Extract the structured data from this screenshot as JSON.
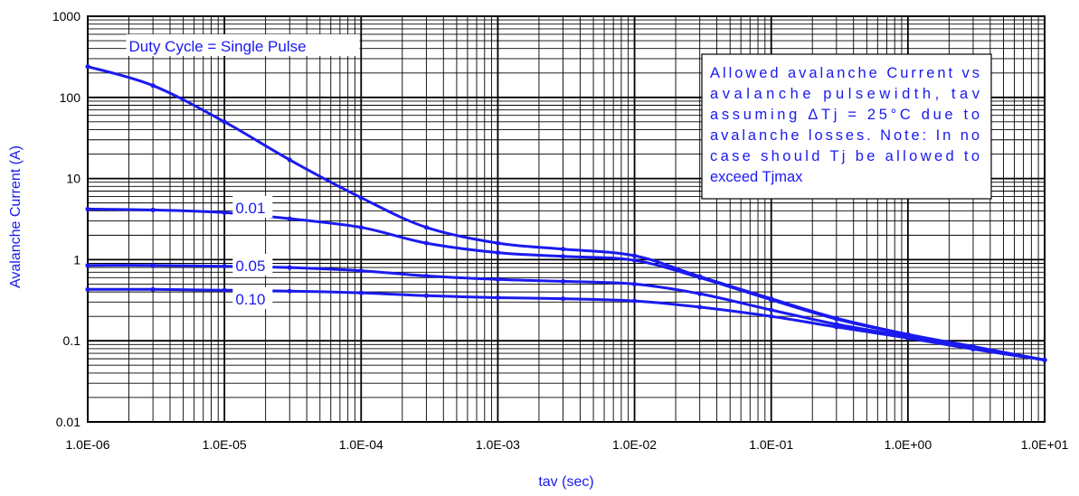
{
  "chart_data": {
    "type": "line",
    "xlabel": "tav (sec)",
    "ylabel": "Avalanche Current (A)",
    "x_scale": "log",
    "y_scale": "log",
    "xlim": [
      1e-06,
      10
    ],
    "ylim": [
      0.01,
      1000
    ],
    "x_tick_labels": [
      "1.0E-06",
      "1.0E-05",
      "1.0E-04",
      "1.0E-03",
      "1.0E-02",
      "1.0E-01",
      "1.0E+00",
      "1.0E+01"
    ],
    "y_tick_labels": [
      "0.01",
      "0.1",
      "1",
      "10",
      "100",
      "1000"
    ],
    "grid": true,
    "color": "#1a1aee",
    "x": [
      1e-06,
      3e-06,
      1e-05,
      3e-05,
      0.0001,
      0.0003,
      0.001,
      0.003,
      0.01,
      0.03,
      0.1,
      0.3,
      1,
      3,
      10
    ],
    "series": [
      {
        "name": "Duty Cycle = Single Pulse",
        "values": [
          240,
          140,
          50,
          17,
          5.8,
          2.5,
          1.6,
          1.35,
          1.12,
          0.62,
          0.33,
          0.19,
          0.12,
          0.085,
          0.058
        ]
      },
      {
        "name": "0.01",
        "values": [
          4.2,
          4.1,
          3.8,
          3.2,
          2.5,
          1.6,
          1.22,
          1.1,
          0.98,
          0.6,
          0.32,
          0.185,
          0.118,
          0.083,
          0.058
        ]
      },
      {
        "name": "0.05",
        "values": [
          0.85,
          0.85,
          0.83,
          0.8,
          0.73,
          0.63,
          0.57,
          0.54,
          0.5,
          0.38,
          0.24,
          0.16,
          0.112,
          0.08,
          0.058
        ]
      },
      {
        "name": "0.10",
        "values": [
          0.43,
          0.43,
          0.42,
          0.41,
          0.39,
          0.36,
          0.34,
          0.33,
          0.31,
          0.26,
          0.2,
          0.148,
          0.108,
          0.079,
          0.058
        ]
      }
    ],
    "annotation": {
      "lines": [
        "Allowed avalanche Current vs",
        "avalanche pulsewidth, tav",
        "assuming ΔTj = 25°C due to",
        "avalanche losses. Note: In no",
        "case should Tj be allowed to",
        "exceed Tjmax"
      ]
    }
  }
}
